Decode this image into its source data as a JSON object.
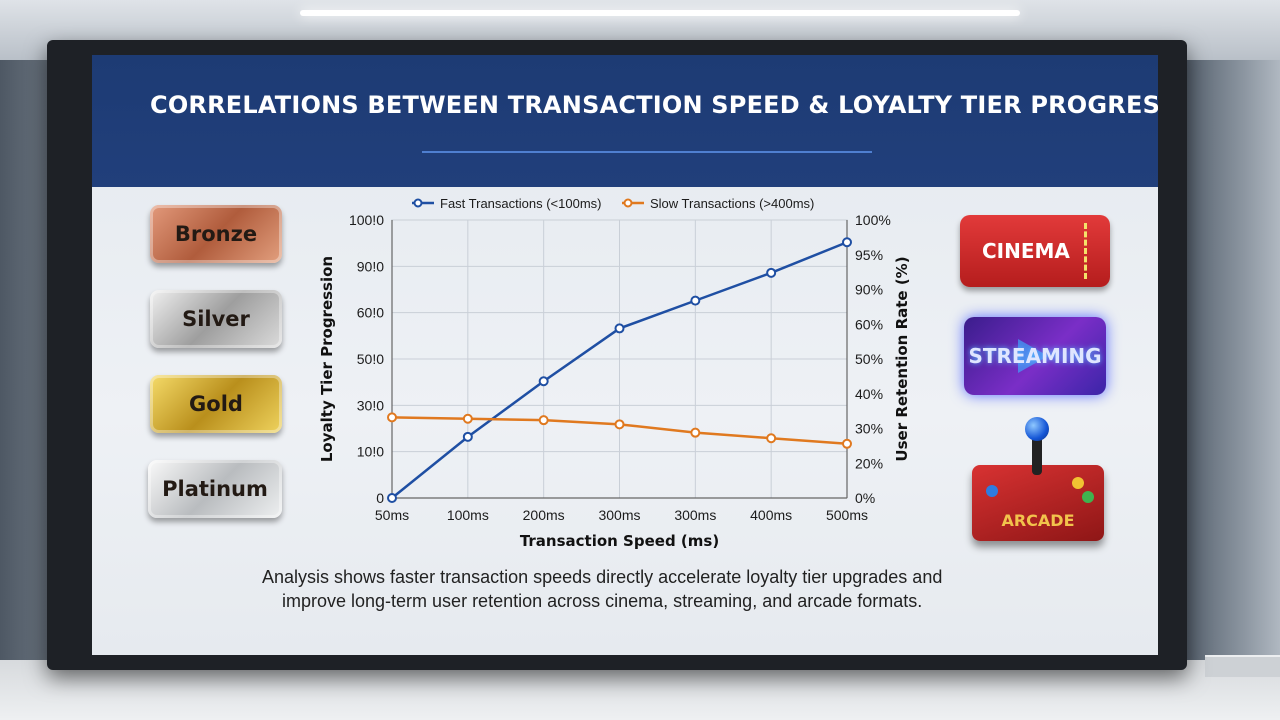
{
  "title": "CORRELATIONS BETWEEN TRANSACTION SPEED & LOYALTY TIER PROGRESSION",
  "tiers": [
    "Bronze",
    "Silver",
    "Gold",
    "Platinum"
  ],
  "formats": {
    "cinema": "CINEMA",
    "streaming": "STREAMING",
    "arcade": "ARCADE"
  },
  "summary": {
    "line1": "Analysis shows faster transaction speeds directly accelerate loyalty tier upgrades and",
    "line2": "improve long-term user retention across cinema, streaming, and arcade formats."
  },
  "colors": {
    "fast": "#1f4fa3",
    "slow": "#e0791f",
    "header": "#1d3b74"
  },
  "chart_data": {
    "type": "line",
    "xlabel": "Transaction Speed (ms)",
    "ylabel_left": "Loyalty Tier Progression",
    "ylabel_right": "User Retention Rate (%)",
    "categories": [
      "50ms",
      "100ms",
      "200ms",
      "300ms",
      "300ms",
      "400ms",
      "500ms"
    ],
    "left_ticks": [
      "0",
      "10!0",
      "30!0",
      "50!0",
      "60!0",
      "90!0",
      "100!0"
    ],
    "right_ticks": [
      "0%",
      "20%",
      "30%",
      "40%",
      "50%",
      "60%",
      "90%",
      "95%",
      "100%"
    ],
    "grid": true,
    "legend_position": "top",
    "series": [
      {
        "name": "Fast Transactions (<100ms)",
        "axis": "left",
        "values": [
          0,
          22,
          42,
          61,
          71,
          81,
          92
        ]
      },
      {
        "name": "Slow Transactions (>400ms)",
        "axis": "left",
        "values": [
          29,
          28.5,
          28,
          26.5,
          23.5,
          21.5,
          19.5
        ]
      }
    ]
  }
}
